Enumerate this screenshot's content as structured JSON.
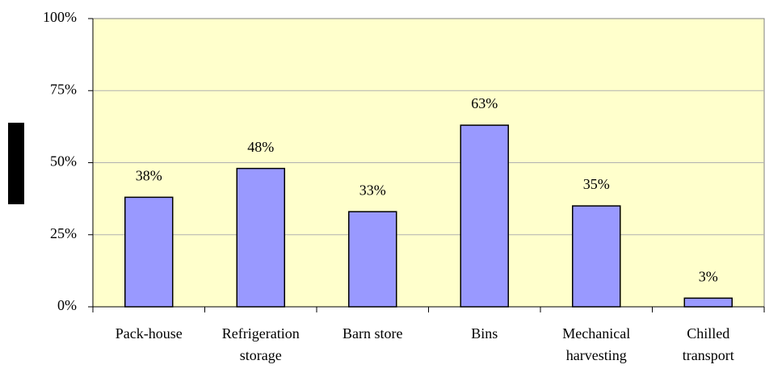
{
  "chart_data": {
    "type": "bar",
    "categories": [
      "Pack-house",
      "Refrigeration storage",
      "Barn store",
      "Bins",
      "Mechanical harvesting",
      "Chilled transport"
    ],
    "values": [
      38,
      48,
      33,
      63,
      35,
      3
    ],
    "value_labels": [
      "38%",
      "48%",
      "33%",
      "63%",
      "35%",
      "3%"
    ],
    "color": "#9999ff",
    "ylim": [
      0,
      100
    ],
    "yticks": [
      {
        "value": 0,
        "label": "0%"
      },
      {
        "value": 25,
        "label": "25%"
      },
      {
        "value": 50,
        "label": "50%"
      },
      {
        "value": 75,
        "label": "75%"
      },
      {
        "value": 100,
        "label": "100%"
      }
    ],
    "grid": true
  }
}
